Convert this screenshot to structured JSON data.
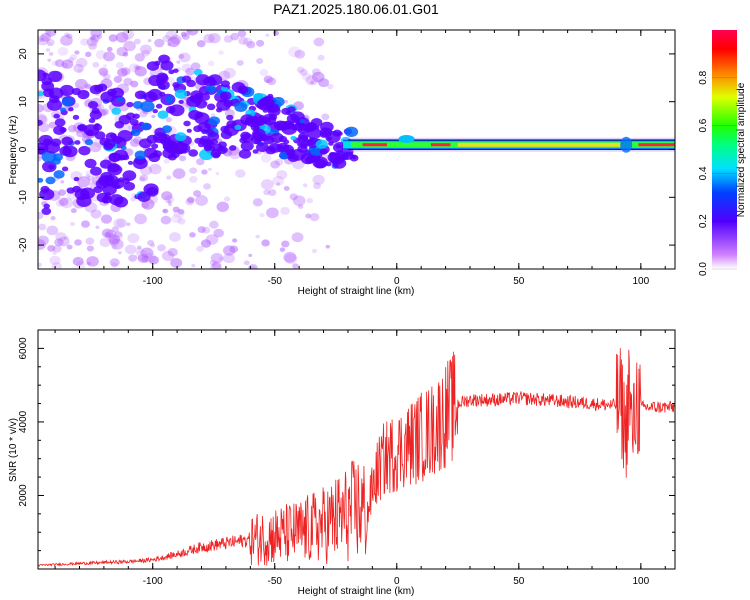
{
  "title": "PAZ1.2025.180.06.01.G01",
  "chart_data": [
    {
      "type": "heatmap",
      "xlabel": "Height of straight line (km)",
      "ylabel": "Frequency (Hz)",
      "xlim": [
        -147,
        114
      ],
      "ylim": [
        -25,
        25
      ],
      "xticks": [
        -100,
        -50,
        0,
        50,
        100
      ],
      "yticks": [
        20,
        10,
        0,
        -10,
        -20
      ],
      "colorbar": {
        "label": "Normalized spectral amplitude",
        "range": [
          0.0,
          1.0
        ],
        "ticks": [
          "0.0",
          "0.2",
          "0.4",
          "0.6",
          "0.8"
        ],
        "colors": [
          "#ffffff",
          "#c040ff",
          "#3300ff",
          "#00e0ff",
          "#00ff00",
          "#ffff00",
          "#ff0000",
          "#ff0050"
        ]
      },
      "ridge": [
        {
          "x": -100,
          "y": 9
        },
        {
          "x": -80,
          "y": 7
        },
        {
          "x": -60,
          "y": 6
        },
        {
          "x": -45,
          "y": 4
        },
        {
          "x": -35,
          "y": 2
        },
        {
          "x": -25,
          "y": 0
        },
        {
          "x": -20,
          "y": 1
        },
        {
          "x": -10,
          "y": 1
        },
        {
          "x": 0,
          "y": 1.5
        },
        {
          "x": 10,
          "y": 1
        },
        {
          "x": 50,
          "y": 1
        },
        {
          "x": 90,
          "y": 1
        },
        {
          "x": 100,
          "y": 1
        },
        {
          "x": 114,
          "y": 1
        }
      ]
    },
    {
      "type": "line",
      "xlabel": "Height of straight line (km)",
      "ylabel": "SNR (10 * v/v)",
      "xlim": [
        -147,
        114
      ],
      "ylim": [
        0,
        6500
      ],
      "xticks": [
        -100,
        -50,
        0,
        50,
        100
      ],
      "yticks": [
        2000,
        4000,
        6000
      ],
      "color": "#ee2222",
      "series": [
        {
          "x": [
            -147,
            -130,
            -110,
            -100,
            -90,
            -80,
            -70,
            -60,
            -50,
            -40,
            -30,
            -20,
            -15,
            -12,
            -10,
            -8,
            -5,
            0,
            5,
            10,
            15,
            20,
            25,
            30,
            40,
            50,
            60,
            70,
            80,
            88,
            92,
            94,
            95,
            96,
            97,
            98,
            100,
            105,
            114
          ],
          "y": [
            100,
            150,
            200,
            250,
            400,
            600,
            700,
            800,
            900,
            1000,
            1200,
            1500,
            1700,
            1500,
            2200,
            2600,
            3000,
            3200,
            3400,
            3600,
            3800,
            4200,
            4500,
            4600,
            4600,
            4650,
            4600,
            4550,
            4500,
            4450,
            4500,
            3600,
            5200,
            3900,
            3800,
            4600,
            4400,
            4400,
            4400
          ]
        }
      ]
    }
  ]
}
